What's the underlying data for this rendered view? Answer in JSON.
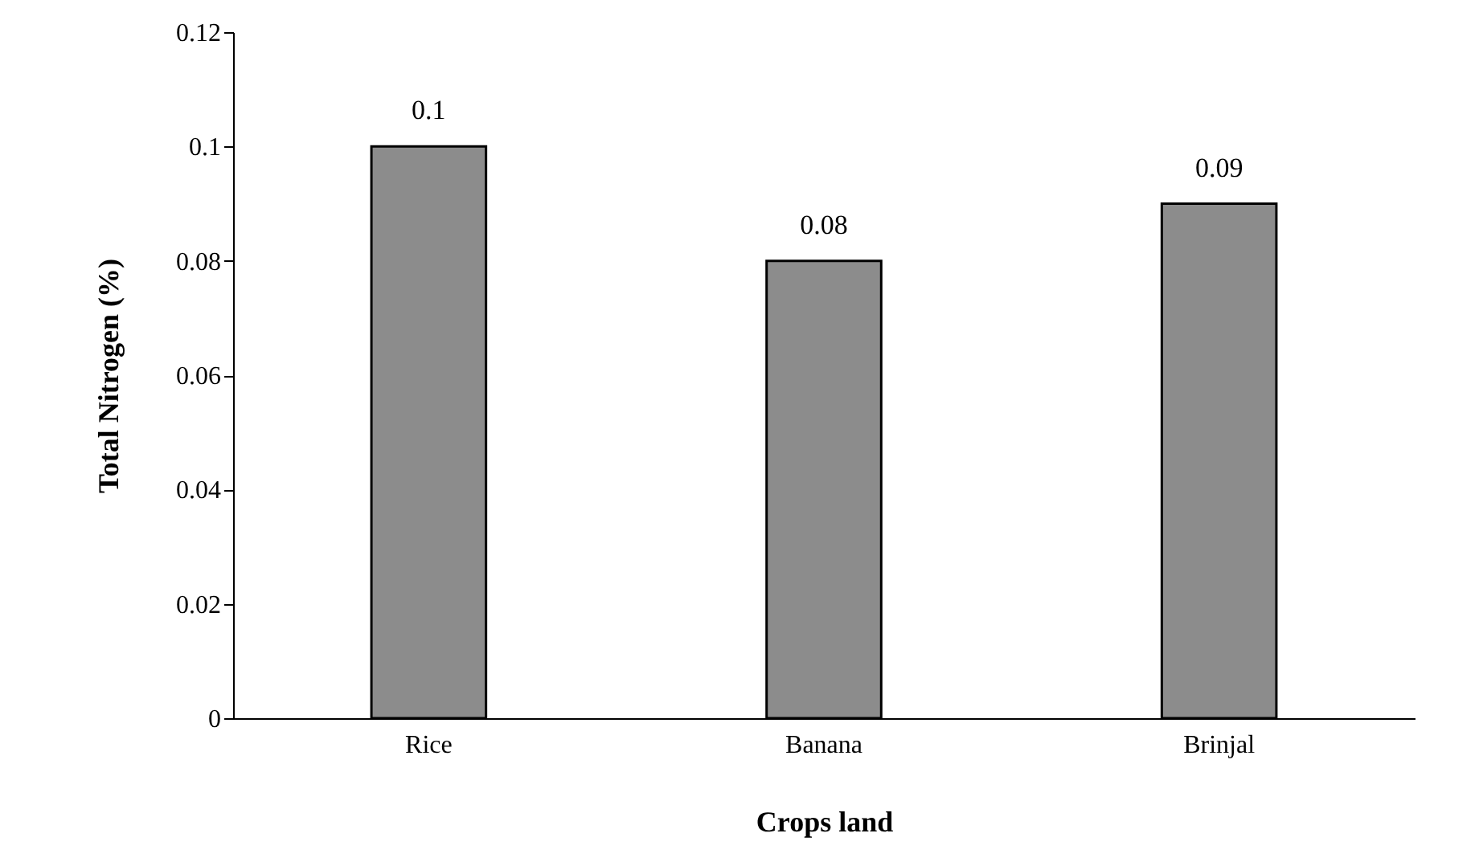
{
  "chart_data": {
    "type": "bar",
    "xlabel": "Crops land",
    "ylabel": "Total Nitrogen (%)",
    "categories": [
      "Rice",
      "Banana",
      "Brinjal"
    ],
    "values": [
      0.1,
      0.08,
      0.09
    ],
    "color": "#8c8c8c",
    "ylim": [
      0,
      0.12
    ],
    "yticks": [
      0,
      0.02,
      0.04,
      0.06,
      0.08,
      0.1,
      0.12
    ],
    "data_labels": true,
    "grid": false
  }
}
